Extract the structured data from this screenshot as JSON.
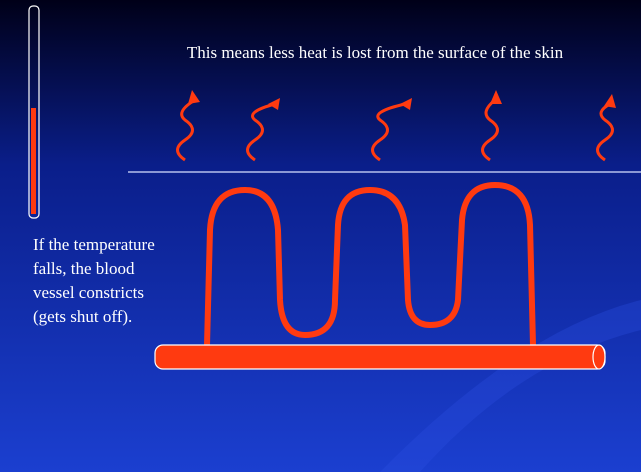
{
  "slide": {
    "caption": "This means less heat is lost from the surface of the skin",
    "text_lines": [
      "If the temperature",
      "falls, the blood",
      "vessel constricts",
      "(gets shut off)."
    ]
  }
}
